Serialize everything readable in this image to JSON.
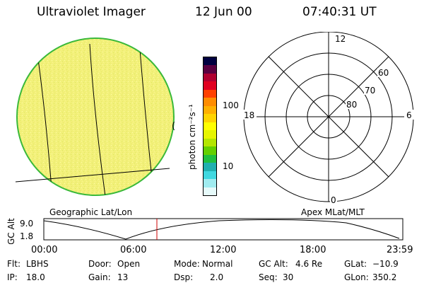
{
  "header": {
    "title": "Ultraviolet Imager",
    "date": "12 Jun 00",
    "time": "07:40:31 UT"
  },
  "colorbar": {
    "unit_label": "photon cm⁻²s⁻¹",
    "ticks": [
      "100",
      "10"
    ],
    "colors": [
      "#000040",
      "#5a0040",
      "#b00030",
      "#e00020",
      "#ff4000",
      "#ff8c00",
      "#ffb000",
      "#ffd400",
      "#ffff00",
      "#e6f500",
      "#b4e600",
      "#64d000",
      "#20c040",
      "#20b0b0",
      "#40d8e0",
      "#a0ecf0",
      "#e6fafa"
    ]
  },
  "globe_panel": {
    "caption": "Geographic Lat/Lon",
    "fill_color": "#f2f07a",
    "edge_color": "#3ab93a",
    "limb_mark": "("
  },
  "polar_panel": {
    "caption": "Apex MLat/MLT",
    "mlt_labels": {
      "top": "12",
      "left": "18",
      "right": "6",
      "bottom": "0"
    },
    "lat_labels": [
      "60",
      "70",
      "80"
    ]
  },
  "altitude_plot": {
    "y_label": "GC Alt",
    "y_ticks": [
      "9.0",
      "1.8"
    ],
    "x_ticks": [
      "00:00",
      "06:00",
      "12:00",
      "18:00",
      "23:59"
    ],
    "marker_color": "#cc0000"
  },
  "info": {
    "flt": {
      "label": "Flt:",
      "value": "LBHS"
    },
    "ip": {
      "label": "IP:",
      "value": "18.0"
    },
    "door": {
      "label": "Door:",
      "value": "Open"
    },
    "gain": {
      "label": "Gain:",
      "value": "13"
    },
    "mode": {
      "label": "Mode:",
      "value": "Normal"
    },
    "dsp": {
      "label": "Dsp:",
      "value": "2.0"
    },
    "gcalt": {
      "label": "GC Alt:",
      "value": "4.6 Re"
    },
    "seq": {
      "label": "Seq:",
      "value": "30"
    },
    "glat": {
      "label": "GLat:",
      "value": "−10.9"
    },
    "glon": {
      "label": "GLon:",
      "value": "350.2"
    }
  }
}
